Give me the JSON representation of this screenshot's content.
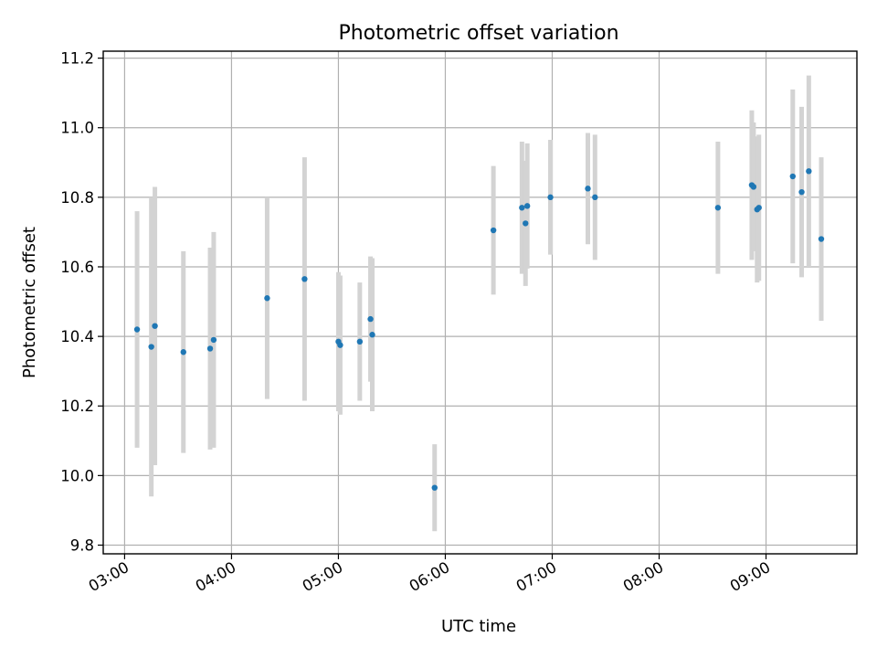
{
  "chart_data": {
    "type": "scatter",
    "title": "Photometric offset variation",
    "xlabel": "UTC time",
    "ylabel": "Photometric offset",
    "x_is_time": true,
    "xlim": [
      "02:48",
      "09:51"
    ],
    "ylim": [
      9.775,
      11.22
    ],
    "x_ticks": [
      "03:00",
      "04:00",
      "05:00",
      "06:00",
      "07:00",
      "08:00",
      "09:00"
    ],
    "y_ticks": [
      9.8,
      10.0,
      10.2,
      10.4,
      10.6,
      10.8,
      11.0,
      11.2
    ],
    "y_tick_labels": [
      "9.8",
      "10.0",
      "10.2",
      "10.4",
      "10.6",
      "10.8",
      "11.0",
      "11.2"
    ],
    "grid": true,
    "legend": "none",
    "colors": {
      "point": "#1f77b4",
      "errorbar": "#d3d3d3"
    },
    "series": [
      {
        "points": [
          {
            "x": "03:07",
            "y": 10.42,
            "err": 0.34
          },
          {
            "x": "03:15",
            "y": 10.37,
            "err": 0.43
          },
          {
            "x": "03:17",
            "y": 10.43,
            "err": 0.4
          },
          {
            "x": "03:33",
            "y": 10.355,
            "err": 0.29
          },
          {
            "x": "03:48",
            "y": 10.365,
            "err": 0.29
          },
          {
            "x": "03:50",
            "y": 10.39,
            "err": 0.31
          },
          {
            "x": "04:20",
            "y": 10.51,
            "err": 0.29
          },
          {
            "x": "04:41",
            "y": 10.565,
            "err": 0.35
          },
          {
            "x": "05:00",
            "y": 10.385,
            "err": 0.2
          },
          {
            "x": "05:01",
            "y": 10.375,
            "err": 0.2
          },
          {
            "x": "05:12",
            "y": 10.385,
            "err": 0.17
          },
          {
            "x": "05:18",
            "y": 10.45,
            "err": 0.18
          },
          {
            "x": "05:19",
            "y": 10.405,
            "err": 0.22
          },
          {
            "x": "05:54",
            "y": 9.965,
            "err": 0.125
          },
          {
            "x": "06:27",
            "y": 10.705,
            "err": 0.185
          },
          {
            "x": "06:43",
            "y": 10.77,
            "err": 0.19
          },
          {
            "x": "06:45",
            "y": 10.725,
            "err": 0.18
          },
          {
            "x": "06:46",
            "y": 10.775,
            "err": 0.18
          },
          {
            "x": "06:59",
            "y": 10.8,
            "err": 0.165
          },
          {
            "x": "07:20",
            "y": 10.825,
            "err": 0.16
          },
          {
            "x": "07:24",
            "y": 10.8,
            "err": 0.18
          },
          {
            "x": "08:33",
            "y": 10.77,
            "err": 0.19
          },
          {
            "x": "08:52",
            "y": 10.835,
            "err": 0.215
          },
          {
            "x": "08:53",
            "y": 10.83,
            "err": 0.185
          },
          {
            "x": "08:55",
            "y": 10.765,
            "err": 0.21
          },
          {
            "x": "08:56",
            "y": 10.77,
            "err": 0.21
          },
          {
            "x": "09:15",
            "y": 10.86,
            "err": 0.25
          },
          {
            "x": "09:20",
            "y": 10.815,
            "err": 0.245
          },
          {
            "x": "09:24",
            "y": 10.875,
            "err": 0.275
          },
          {
            "x": "09:31",
            "y": 10.68,
            "err": 0.235
          }
        ]
      }
    ]
  }
}
